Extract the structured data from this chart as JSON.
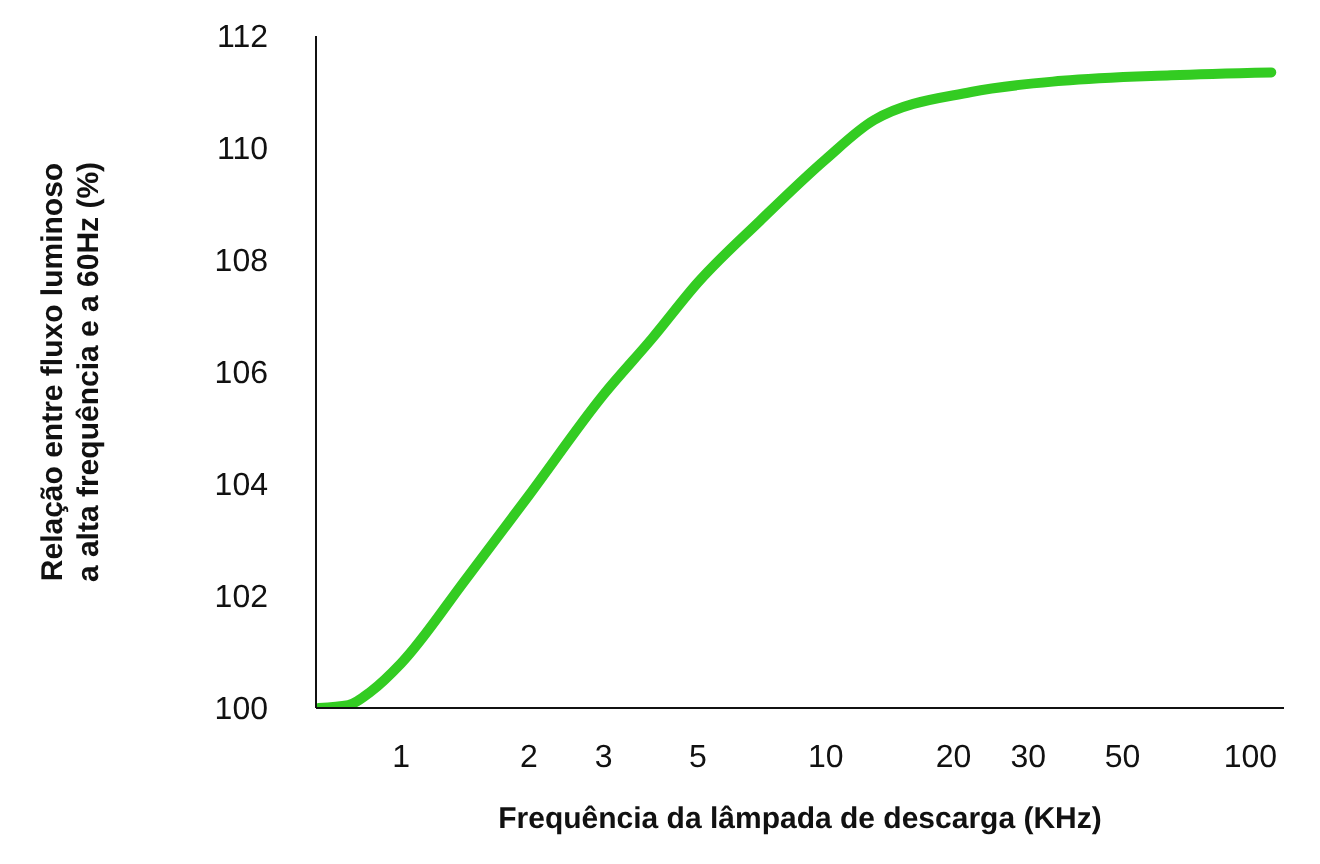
{
  "chart_data": {
    "type": "line",
    "xlabel": "Frequência da lâmpada de descarga (KHz)",
    "ylabel": "Relação entre fluxo luminoso\na alta frequência e a 60Hz (%)",
    "log": "x",
    "xlim": [
      0.63,
      120
    ],
    "xticks": [
      1,
      2,
      3,
      5,
      10,
      20,
      30,
      50,
      100
    ],
    "ylim": [
      100,
      112
    ],
    "yticks": [
      100,
      102,
      104,
      106,
      108,
      110,
      112
    ],
    "marker": "none",
    "line_style": "solid",
    "series": [
      {
        "color": "#33cc22",
        "x": [
          0.64,
          0.75,
          0.85,
          1,
          1.42,
          2,
          3,
          3.9,
          5,
          7,
          10,
          13,
          22,
          36,
          65,
          112
        ],
        "values": [
          100,
          100.05,
          100.3,
          100.8,
          102.3,
          103.8,
          105.6,
          106.6,
          107.6,
          108.7,
          109.8,
          110.5,
          111,
          111.2,
          111.3,
          111.35
        ]
      }
    ]
  }
}
